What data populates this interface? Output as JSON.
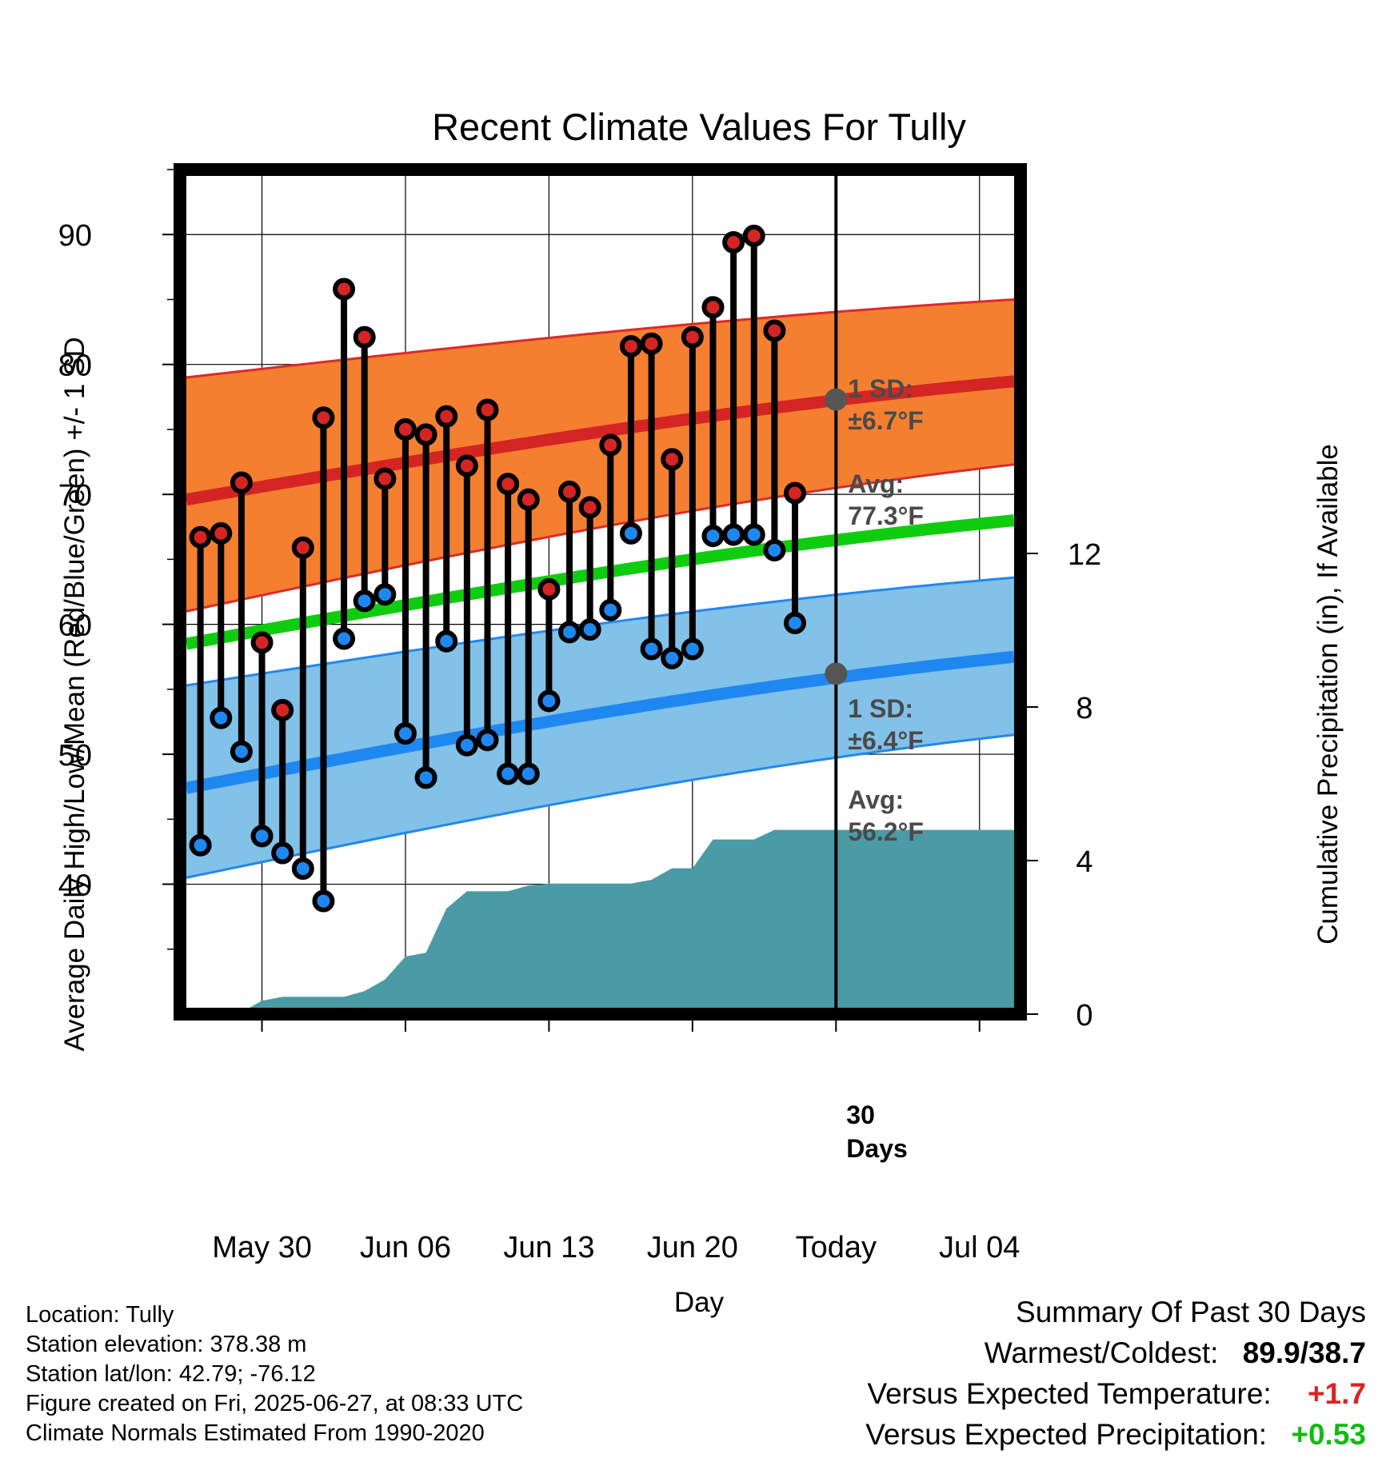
{
  "chart_data": {
    "type": "line",
    "title": "Recent Climate Values For Tully",
    "xlabel": "Day",
    "ylabel_left": "Average Daily High/Low/Mean (Red/Blue/Green) +/- 1 SD",
    "ylabel_right": "Cumulative Precipitation (in), If Available",
    "ylim_left": [
      30,
      95
    ],
    "ylim_right": [
      0,
      22
    ],
    "xlim_days": [
      "2025-05-26",
      "2025-07-06"
    ],
    "x_tick_labels": [
      "May 30",
      "Jun 06",
      "Jun 13",
      "Jun 20",
      "Today",
      "Jul 04"
    ],
    "x_tick_dates": [
      "2025-05-30",
      "2025-06-06",
      "2025-06-13",
      "2025-06-20",
      "2025-06-27",
      "2025-07-04"
    ],
    "y_tick_labels_left": [
      "40",
      "50",
      "60",
      "70",
      "80",
      "90"
    ],
    "y_tick_labels_right": [
      "0",
      "4",
      "8",
      "12"
    ],
    "grid": true,
    "dates": [
      "2025-05-27",
      "2025-05-28",
      "2025-05-29",
      "2025-05-30",
      "2025-05-31",
      "2025-06-01",
      "2025-06-02",
      "2025-06-03",
      "2025-06-04",
      "2025-06-05",
      "2025-06-06",
      "2025-06-07",
      "2025-06-08",
      "2025-06-09",
      "2025-06-10",
      "2025-06-11",
      "2025-06-12",
      "2025-06-13",
      "2025-06-14",
      "2025-06-15",
      "2025-06-16",
      "2025-06-17",
      "2025-06-18",
      "2025-06-19",
      "2025-06-20",
      "2025-06-21",
      "2025-06-22",
      "2025-06-23",
      "2025-06-24",
      "2025-06-25",
      "2025-06-26"
    ],
    "series": [
      {
        "name": "High",
        "color": "#cc2222",
        "values": [
          66.7,
          67.0,
          70.9,
          58.6,
          53.4,
          65.9,
          75.9,
          85.8,
          82.1,
          71.2,
          75.0,
          74.6,
          76.0,
          72.2,
          76.5,
          70.8,
          69.6,
          62.7,
          70.2,
          69.0,
          73.8,
          81.4,
          81.6,
          72.7,
          82.1,
          84.4,
          89.4,
          89.9,
          82.6,
          70.1,
          null
        ]
      },
      {
        "name": "Low",
        "color": "#2288ee",
        "values": [
          43.0,
          52.8,
          50.2,
          43.7,
          42.4,
          41.2,
          38.7,
          58.9,
          61.8,
          62.3,
          51.6,
          48.2,
          58.7,
          50.7,
          51.1,
          48.5,
          48.5,
          54.1,
          59.4,
          59.6,
          61.1,
          67.0,
          58.1,
          57.4,
          58.1,
          66.8,
          66.9,
          66.9,
          65.7,
          60.1,
          null
        ]
      },
      {
        "name": "Precipitation",
        "color": "#4a9ba5",
        "values": [
          0.0,
          0.05,
          0.05,
          0.35,
          0.45,
          0.45,
          0.45,
          0.45,
          0.6,
          0.9,
          1.5,
          1.6,
          2.75,
          3.2,
          3.2,
          3.2,
          3.35,
          3.4,
          3.4,
          3.4,
          3.4,
          3.4,
          3.5,
          3.8,
          3.8,
          4.55,
          4.55,
          4.55,
          4.8,
          4.8,
          4.8
        ]
      }
    ],
    "normals": {
      "high_avg": {
        "start": 69.6,
        "end": 78.7
      },
      "high_band_upper": {
        "start": 79.0,
        "end": 85.0
      },
      "high_band_lower": {
        "start": 61.0,
        "end": 72.3
      },
      "mean": {
        "start": 58.5,
        "end": 68.0
      },
      "low_avg": {
        "start": 47.4,
        "end": 57.5
      },
      "low_band_upper": {
        "start": 55.3,
        "end": 63.6
      },
      "low_band_lower": {
        "start": 40.5,
        "end": 51.5
      },
      "colors": {
        "high_band": "#f47f30",
        "high_edge": "#dd2a2a",
        "high_line": "#d42424",
        "mean_line": "#0fcc0f",
        "low_band": "#82c1e8",
        "low_edge": "#2288ee",
        "low_line": "#1e88f0",
        "precip": "#4a9ba5"
      }
    },
    "annotations": {
      "high_sd_line1": "1 SD:",
      "high_sd_line2": "±6.7°F",
      "high_avg_line1": "Avg:",
      "high_avg_line2": "77.3°F",
      "low_sd_line1": "1 SD:",
      "low_sd_line2": "±6.4°F",
      "low_avg_line1": "Avg:",
      "low_avg_line2": "56.2°F",
      "days_line1": "30",
      "days_line2": "Days",
      "today_high_avg": 77.3,
      "today_low_avg": 56.2
    }
  },
  "info": {
    "location": "Location: Tully",
    "elevation": "Station elevation: 378.38 m",
    "latlon": "Station lat/lon: 42.79; -76.12",
    "created": "Figure created on Fri, 2025-06-27, at 08:33 UTC",
    "normals": "Climate Normals Estimated From 1990-2020"
  },
  "summary": {
    "title": "Summary Of Past 30 Days",
    "warm_cold_label": "Warmest/Coldest:",
    "warm_cold_value": "89.9/38.7",
    "temp_label": "Versus Expected Temperature:",
    "temp_value": "+1.7",
    "temp_color": "#dd2222",
    "precip_label": "Versus Expected Precipitation:",
    "precip_value": "+0.53",
    "precip_color": "#11bb11"
  }
}
